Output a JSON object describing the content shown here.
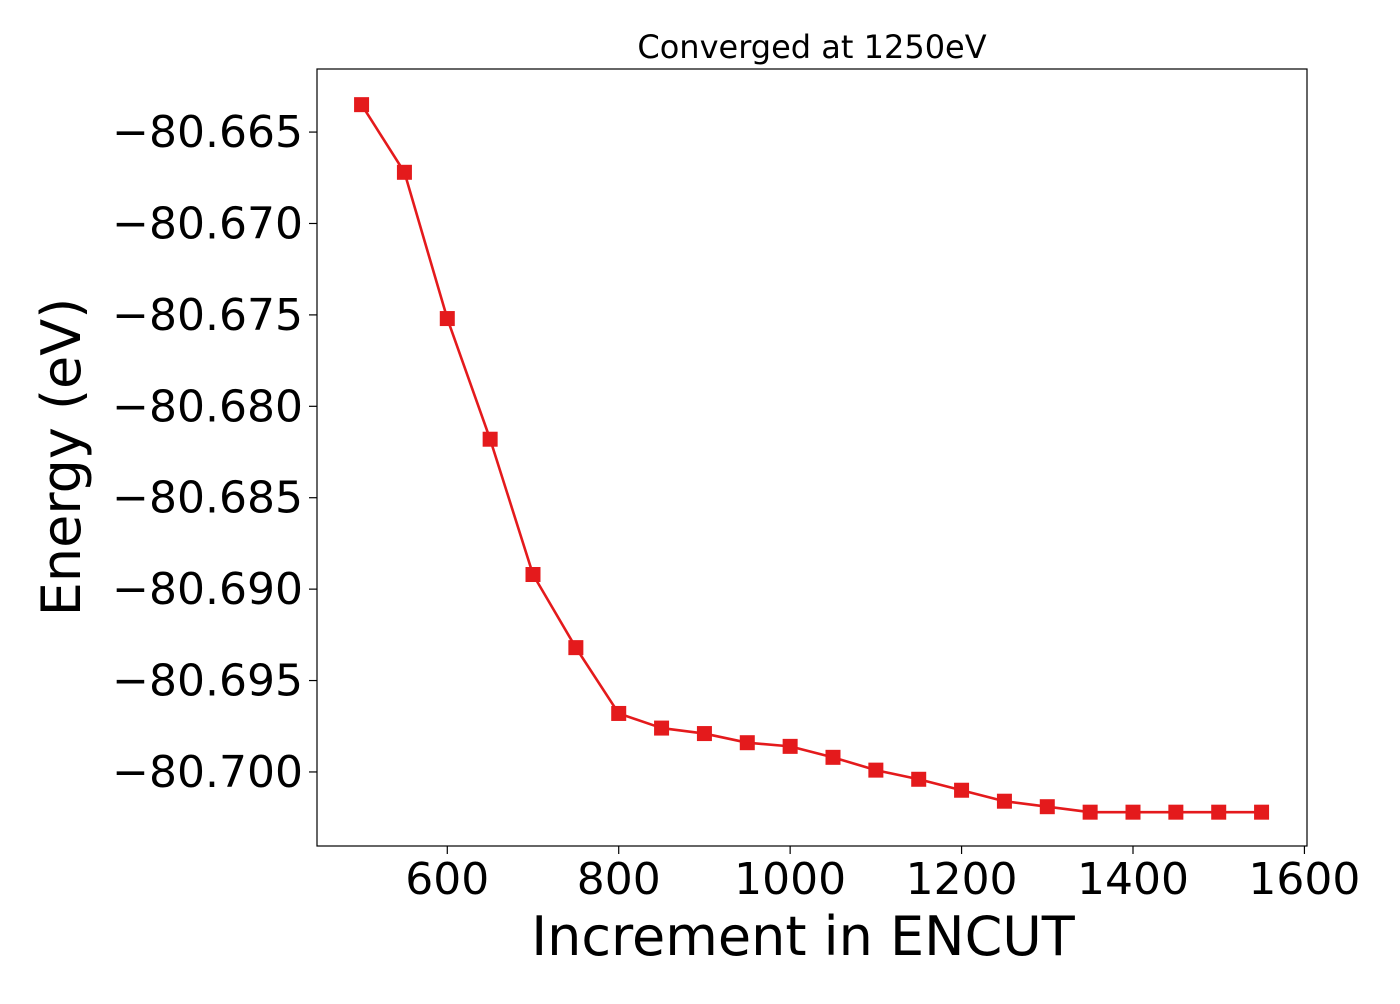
{
  "chart_data": {
    "type": "line",
    "title": "Converged at 1250eV",
    "xlabel": "Increment in ENCUT",
    "ylabel": "Energy (eV)",
    "x": [
      500,
      550,
      600,
      650,
      700,
      750,
      800,
      850,
      900,
      950,
      1000,
      1050,
      1100,
      1150,
      1200,
      1250,
      1300,
      1350,
      1400,
      1450,
      1500,
      1550
    ],
    "series": [
      {
        "name": "",
        "color": "#e41a1c",
        "marker": "square",
        "values": [
          -80.6635,
          -80.6672,
          -80.6752,
          -80.6818,
          -80.6892,
          -80.6932,
          -80.6968,
          -80.6976,
          -80.6979,
          -80.6984,
          -80.6986,
          -80.6992,
          -80.6999,
          -80.7004,
          -80.701,
          -80.7016,
          -80.7019,
          -80.7022,
          -80.7022,
          -80.7022,
          -80.7022,
          -80.7022
        ]
      }
    ],
    "xlim": [
      448,
      1603
    ],
    "ylim": [
      -80.70405,
      -80.66155
    ],
    "xticks": [
      600,
      800,
      1000,
      1200,
      1400,
      1600
    ],
    "yticks": [
      -80.665,
      -80.67,
      -80.675,
      -80.68,
      -80.685,
      -80.69,
      -80.695,
      -80.7
    ],
    "xtick_labels": [
      "600",
      "800",
      "1000",
      "1200",
      "1400",
      "1600"
    ],
    "ytick_labels": [
      "−80.665",
      "−80.670",
      "−80.675",
      "−80.680",
      "−80.685",
      "−80.690",
      "−80.695",
      "−80.700"
    ],
    "grid": false,
    "legend": "none"
  }
}
